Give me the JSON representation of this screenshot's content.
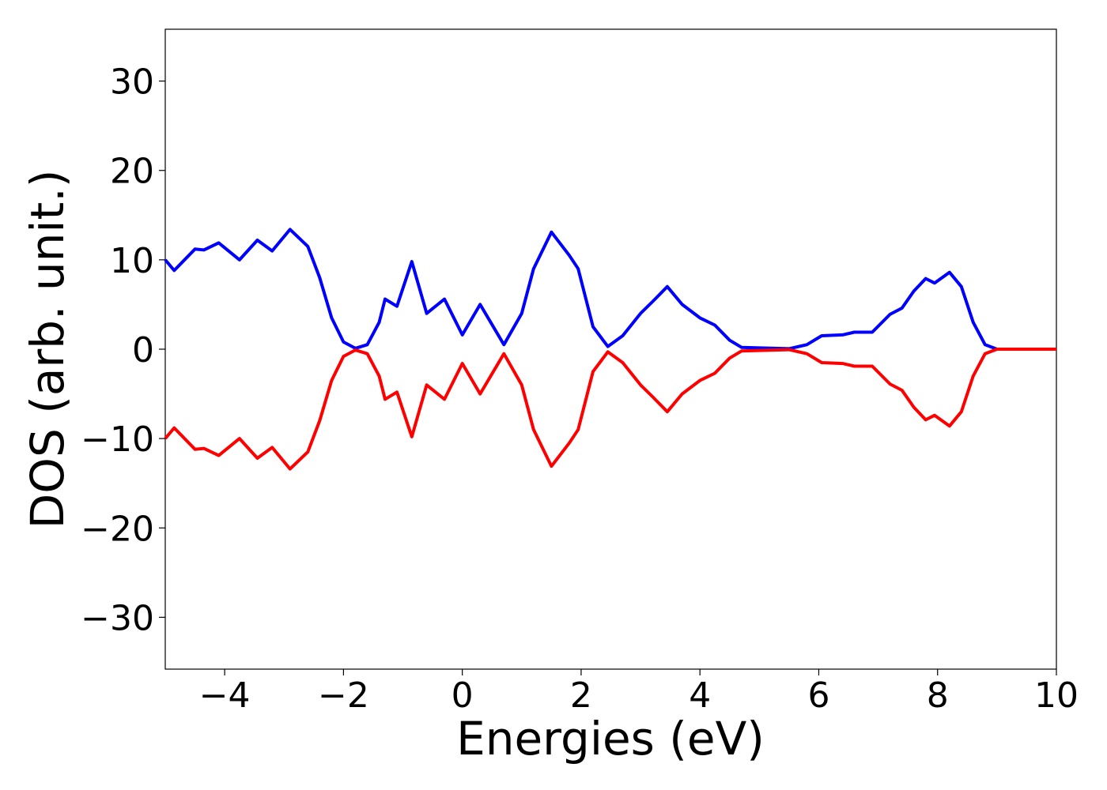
{
  "chart_data": {
    "type": "line",
    "x_label": "Energies (eV)",
    "y_label": "DOS (arb. unit.)",
    "x": [
      -5,
      -4.85,
      -4.5,
      -4.35,
      -4.1,
      -3.75,
      -3.45,
      -3.2,
      -2.9,
      -2.6,
      -2.4,
      -2.2,
      -2.0,
      -1.8,
      -1.6,
      -1.4,
      -1.3,
      -1.1,
      -0.85,
      -0.6,
      -0.3,
      0.0,
      0.3,
      0.7,
      1.0,
      1.2,
      1.5,
      1.8,
      1.95,
      2.2,
      2.45,
      2.7,
      3.0,
      3.2,
      3.45,
      3.7,
      4.0,
      4.25,
      4.5,
      4.7,
      5.5,
      5.8,
      6.05,
      6.4,
      6.6,
      6.9,
      7.2,
      7.4,
      7.6,
      7.8,
      7.95,
      8.2,
      8.4,
      8.6,
      8.8,
      9.0,
      10
    ],
    "series": [
      {
        "color": "#0000ff",
        "values": [
          10,
          8.8,
          11.2,
          11.1,
          11.9,
          10,
          12.2,
          11,
          13.4,
          11.5,
          8,
          3.5,
          0.8,
          0.1,
          0.5,
          3,
          5.6,
          4.8,
          9.8,
          4,
          5.6,
          1.6,
          5.0,
          0.5,
          4,
          9,
          13.1,
          10.5,
          9,
          2.5,
          0.3,
          1.5,
          4,
          5.3,
          7,
          5,
          3.5,
          2.7,
          1,
          0.2,
          0.05,
          0.5,
          1.5,
          1.6,
          1.9,
          1.9,
          3.9,
          4.6,
          6.5,
          7.9,
          7.4,
          8.6,
          7,
          3,
          0.5,
          0,
          0
        ]
      },
      {
        "color": "#ff0000",
        "values": [
          -10,
          -8.8,
          -11.2,
          -11.1,
          -11.9,
          -10,
          -12.2,
          -11,
          -13.4,
          -11.5,
          -8,
          -3.5,
          -0.8,
          -0.1,
          -0.5,
          -3,
          -5.6,
          -4.8,
          -9.8,
          -4,
          -5.6,
          -1.6,
          -5.0,
          -0.5,
          -4,
          -9,
          -13.1,
          -10.5,
          -9,
          -2.5,
          -0.3,
          -1.5,
          -4,
          -5.3,
          -7,
          -5,
          -3.5,
          -2.7,
          -1,
          -0.2,
          -0.05,
          -0.5,
          -1.5,
          -1.6,
          -1.9,
          -1.9,
          -3.9,
          -4.6,
          -6.5,
          -7.9,
          -7.4,
          -8.6,
          -7,
          -3,
          -0.5,
          0,
          0
        ]
      }
    ],
    "xlim": [
      -5,
      10
    ],
    "xticks": [
      {
        "value": -4,
        "label": "−4"
      },
      {
        "value": -2,
        "label": "−2"
      },
      0,
      2,
      4,
      6,
      8,
      10
    ],
    "ylim": [
      -35.8,
      35.8
    ],
    "yticks": [
      {
        "value": -30,
        "label": "−30"
      },
      {
        "value": -20,
        "label": "−20"
      },
      {
        "value": -10,
        "label": "−10"
      },
      0,
      10,
      20,
      30
    ],
    "grid": false
  }
}
